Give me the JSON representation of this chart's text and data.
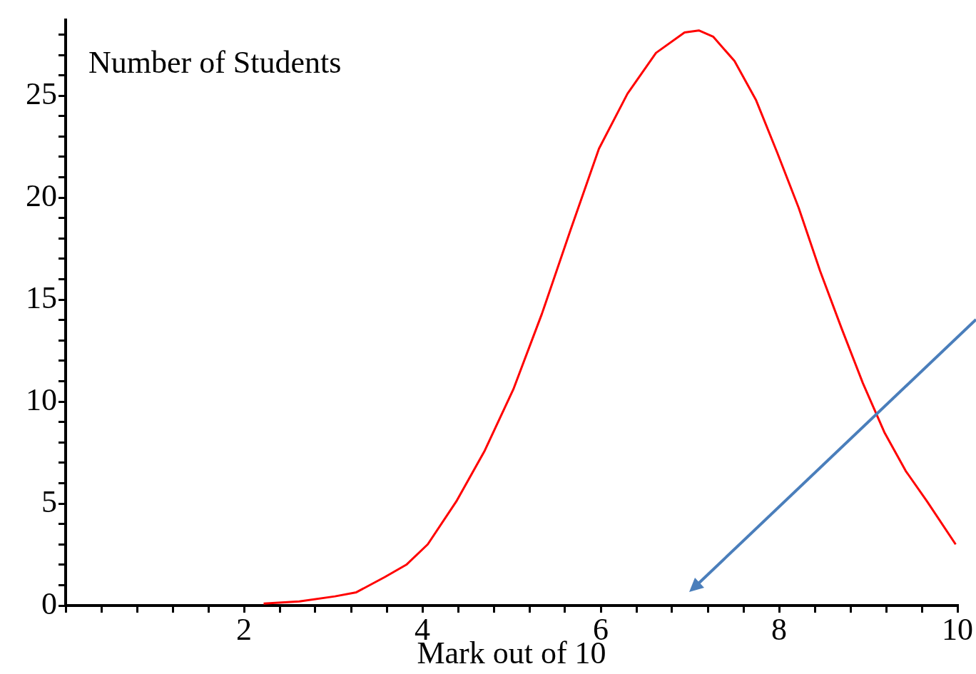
{
  "chart_data": {
    "type": "line",
    "xlabel": "Mark out of 10",
    "ylabel": "Number of Students",
    "x": [
      2.22,
      2.62,
      3.02,
      3.26,
      3.58,
      3.82,
      4.06,
      4.38,
      4.7,
      5.02,
      5.34,
      5.66,
      5.98,
      6.3,
      6.62,
      6.94,
      7.1,
      7.26,
      7.5,
      7.74,
      7.98,
      8.22,
      8.46,
      8.7,
      8.94,
      9.18,
      9.42,
      9.66,
      9.98
    ],
    "series": [
      {
        "color": "#ff0000",
        "values": [
          0.1,
          0.2,
          0.45,
          0.65,
          1.4,
          2.0,
          3.0,
          5.1,
          7.6,
          10.6,
          14.3,
          18.4,
          22.4,
          25.1,
          27.1,
          28.1,
          28.2,
          27.9,
          26.7,
          24.8,
          22.2,
          19.5,
          16.4,
          13.6,
          10.9,
          8.5,
          6.6,
          5.1,
          3.0
        ]
      }
    ],
    "xlim": [
      0,
      10
    ],
    "ylim": [
      0,
      28.7
    ],
    "xticks": [
      {
        "value": 0,
        "label": null
      },
      {
        "value": 0.4,
        "label": null
      },
      {
        "value": 0.8,
        "label": null
      },
      {
        "value": 1.2,
        "label": null
      },
      {
        "value": 1.6,
        "label": null
      },
      2,
      {
        "value": 2.4,
        "label": null
      },
      {
        "value": 2.8,
        "label": null
      },
      {
        "value": 3.2,
        "label": null
      },
      {
        "value": 3.6,
        "label": null
      },
      4,
      {
        "value": 4.4,
        "label": null
      },
      {
        "value": 4.8,
        "label": null
      },
      {
        "value": 5.2,
        "label": null
      },
      {
        "value": 5.6,
        "label": null
      },
      6,
      {
        "value": 6.4,
        "label": null
      },
      {
        "value": 6.8,
        "label": null
      },
      {
        "value": 7.2,
        "label": null
      },
      {
        "value": 7.6,
        "label": null
      },
      8,
      {
        "value": 8.4,
        "label": null
      },
      {
        "value": 8.8,
        "label": null
      },
      {
        "value": 9.2,
        "label": null
      },
      {
        "value": 9.6,
        "label": null
      },
      10
    ],
    "yticks": [
      0,
      {
        "value": 1,
        "label": null
      },
      {
        "value": 2,
        "label": null
      },
      {
        "value": 3,
        "label": null
      },
      {
        "value": 4,
        "label": null
      },
      5,
      {
        "value": 6,
        "label": null
      },
      {
        "value": 7,
        "label": null
      },
      {
        "value": 8,
        "label": null
      },
      {
        "value": 9,
        "label": null
      },
      10,
      {
        "value": 11,
        "label": null
      },
      {
        "value": 12,
        "label": null
      },
      {
        "value": 13,
        "label": null
      },
      {
        "value": 14,
        "label": null
      },
      15,
      {
        "value": 16,
        "label": null
      },
      {
        "value": 17,
        "label": null
      },
      {
        "value": 18,
        "label": null
      },
      {
        "value": 19,
        "label": null
      },
      20,
      {
        "value": 21,
        "label": null
      },
      {
        "value": 22,
        "label": null
      },
      {
        "value": 23,
        "label": null
      },
      {
        "value": 24,
        "label": null
      },
      25,
      {
        "value": 26,
        "label": null
      },
      {
        "value": 27,
        "label": null
      },
      {
        "value": 28,
        "label": null
      }
    ],
    "grid": false,
    "legend": false,
    "marker": "none",
    "line_style": "solid"
  }
}
